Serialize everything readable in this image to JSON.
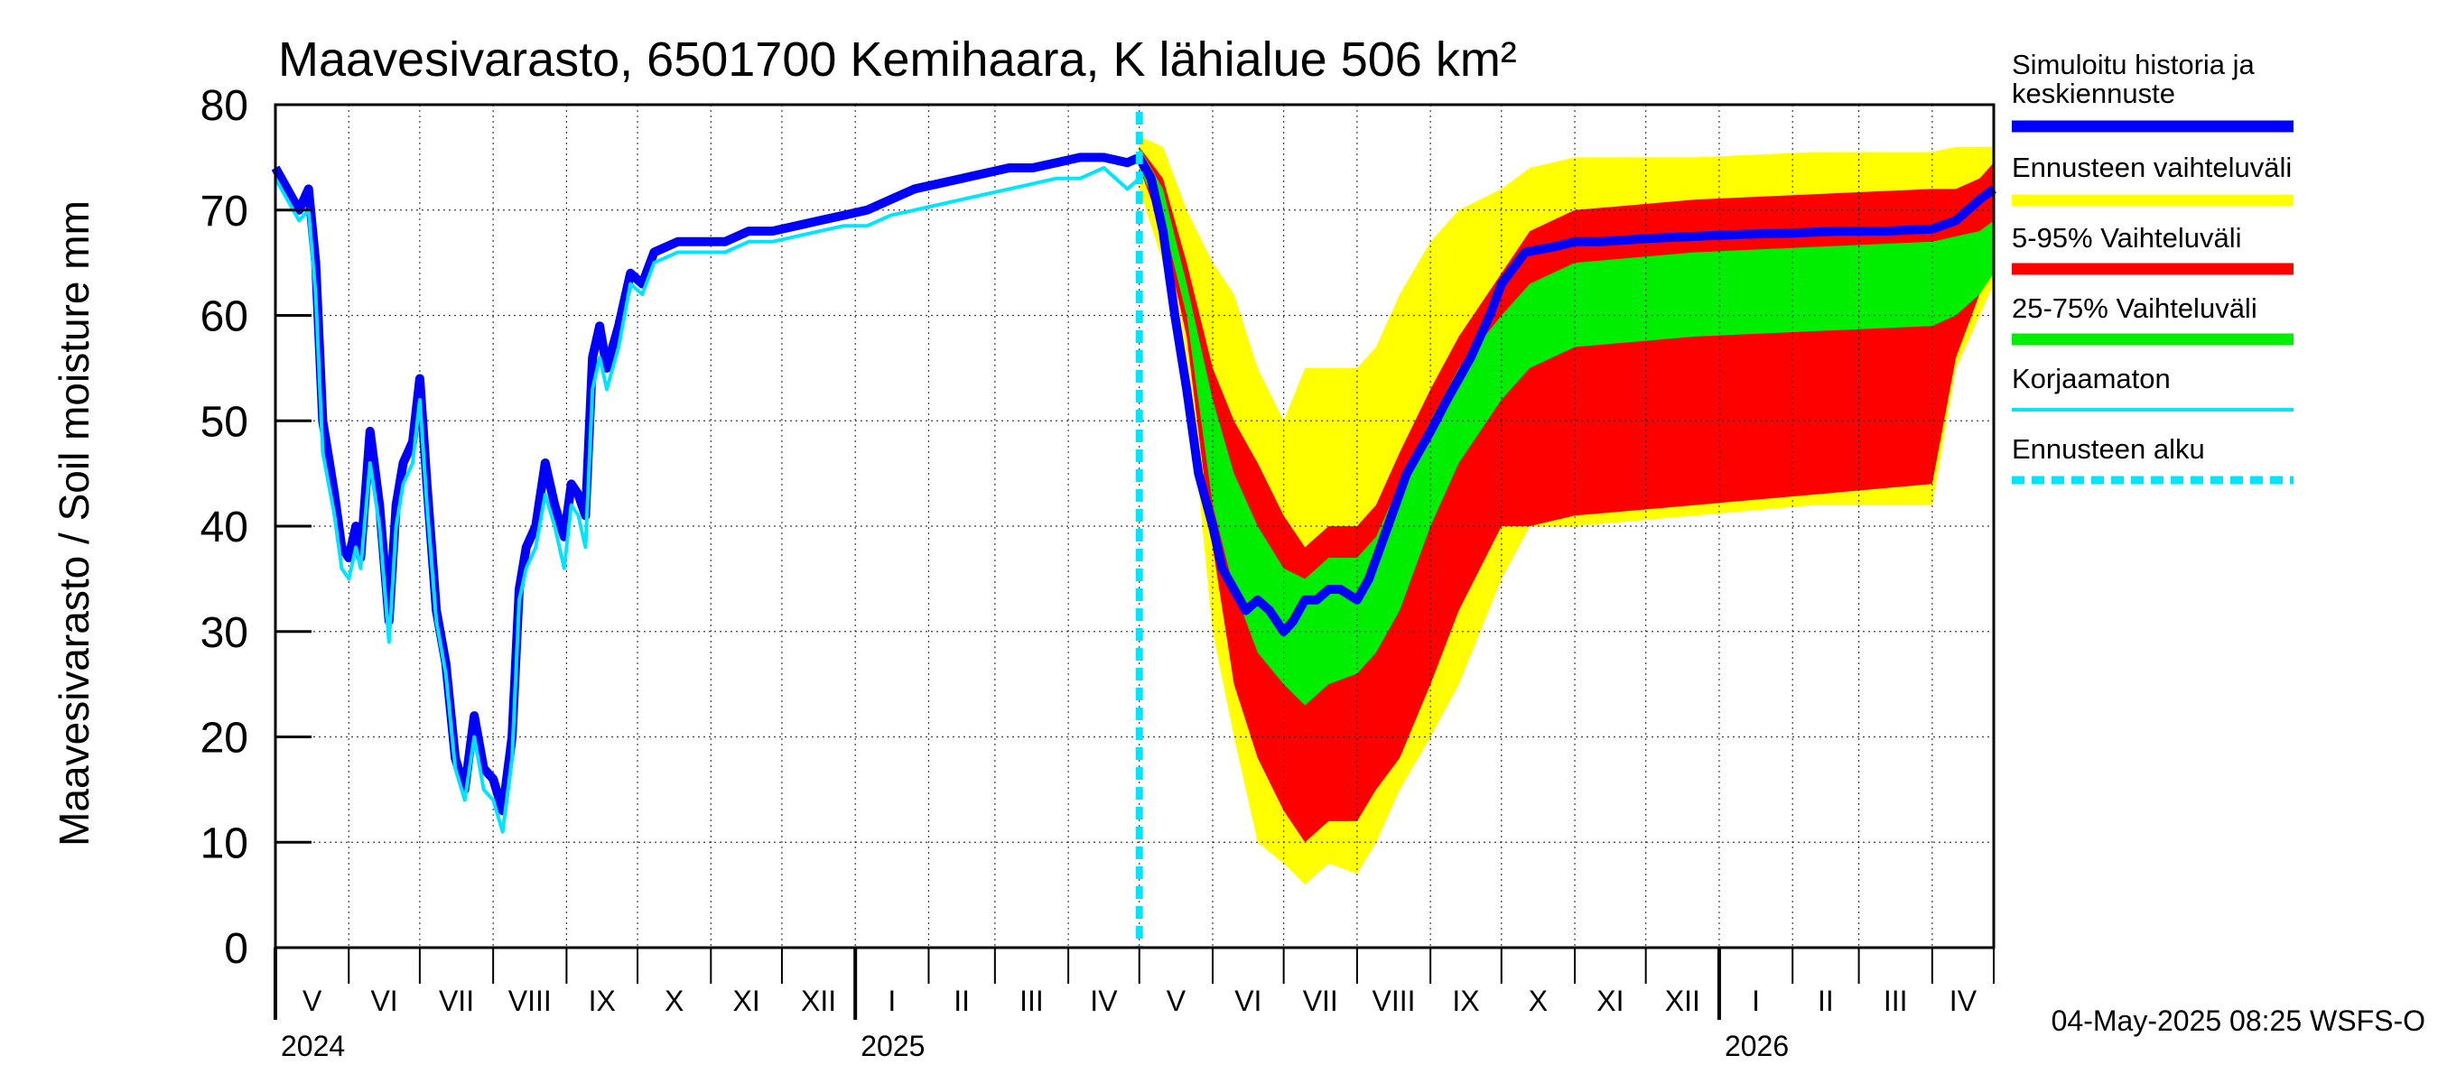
{
  "chart_data": {
    "type": "area",
    "title": "Maavesivarasto, 6501700 Kemihaara, K lähialue 506 km²",
    "ylabel": "Maavesivarasto / Soil moisture   mm",
    "xlabel": "",
    "ylim": [
      0,
      80
    ],
    "yticks": [
      0,
      10,
      20,
      30,
      40,
      50,
      60,
      70,
      80
    ],
    "xlim_days": [
      0,
      726
    ],
    "grid": true,
    "forecast_start_day": 365,
    "months": [
      "V",
      "VI",
      "VII",
      "VIII",
      "IX",
      "X",
      "XI",
      "XII",
      "I",
      "II",
      "III",
      "IV",
      "V",
      "VI",
      "VII",
      "VIII",
      "IX",
      "X",
      "XI",
      "XII",
      "I",
      "II",
      "III",
      "IV"
    ],
    "month_start_days": [
      0,
      31,
      61,
      92,
      123,
      153,
      184,
      214,
      245,
      276,
      304,
      335,
      365,
      396,
      426,
      457,
      488,
      518,
      549,
      579,
      610,
      641,
      669,
      700
    ],
    "years": [
      {
        "label": "2024",
        "day": 0
      },
      {
        "label": "2025",
        "day": 245
      },
      {
        "label": "2026",
        "day": 610
      }
    ],
    "series": [
      {
        "name": "Simuloitu historia ja keskiennuste",
        "color": "#0000ff",
        "x": [
          0,
          10,
          14,
          17,
          20,
          25,
          28,
          31,
          34,
          36,
          40,
          44,
          48,
          51,
          54,
          58,
          61,
          64,
          68,
          72,
          76,
          80,
          84,
          88,
          92,
          96,
          100,
          103,
          106,
          110,
          114,
          118,
          122,
          125,
          128,
          131,
          134,
          137,
          140,
          145,
          150,
          155,
          160,
          170,
          180,
          190,
          200,
          210,
          220,
          230,
          240,
          250,
          260,
          270,
          280,
          290,
          300,
          310,
          320,
          330,
          340,
          350,
          360,
          365
        ],
        "y": [
          74,
          70,
          72,
          65,
          50,
          43,
          38,
          37,
          40,
          37,
          49,
          42,
          31,
          42,
          46,
          48,
          54,
          44,
          32,
          27,
          18,
          15,
          22,
          17,
          16,
          13,
          20,
          34,
          38,
          40,
          46,
          42,
          39,
          44,
          43,
          41,
          56,
          59,
          55,
          59,
          64,
          63,
          66,
          67,
          67,
          67,
          68,
          68,
          68.5,
          69,
          69.5,
          70,
          71,
          72,
          72.5,
          73,
          73.5,
          74,
          74,
          74.5,
          75,
          75,
          74.5,
          75
        ]
      },
      {
        "name": "Keskiennuste",
        "color": "#0000ff",
        "x": [
          365,
          370,
          375,
          380,
          385,
          390,
          396,
          400,
          405,
          410,
          415,
          420,
          426,
          430,
          435,
          440,
          445,
          450,
          457,
          462,
          470,
          478,
          488,
          495,
          505,
          513,
          518,
          528,
          540,
          549,
          560,
          580,
          600,
          620,
          640,
          660,
          680,
          700,
          710,
          715,
          720,
          726
        ],
        "y": [
          75,
          73,
          68,
          60,
          53,
          45,
          40,
          36,
          34,
          32,
          33,
          32,
          30,
          31,
          33,
          33,
          34,
          34,
          33,
          35,
          40,
          45,
          49,
          52,
          56,
          60,
          63,
          66,
          66.5,
          67,
          67,
          67.3,
          67.5,
          67.7,
          67.8,
          68,
          68,
          68.2,
          69,
          70,
          71,
          72
        ]
      },
      {
        "name": "Korjaamaton",
        "color": "#00e5ff",
        "x": [
          0,
          10,
          14,
          17,
          20,
          25,
          28,
          31,
          34,
          36,
          40,
          44,
          48,
          51,
          54,
          58,
          61,
          64,
          68,
          72,
          76,
          80,
          84,
          88,
          92,
          96,
          100,
          103,
          106,
          110,
          114,
          118,
          122,
          125,
          128,
          131,
          134,
          137,
          140,
          145,
          150,
          155,
          160,
          170,
          180,
          190,
          200,
          210,
          220,
          230,
          240,
          250,
          260,
          270,
          280,
          290,
          300,
          310,
          320,
          330,
          340,
          350,
          360,
          365
        ],
        "y": [
          73,
          69,
          70,
          62,
          47,
          41,
          36,
          35,
          38,
          36,
          46,
          40,
          29,
          40,
          44,
          46,
          52,
          42,
          31,
          26,
          17,
          14,
          20,
          15,
          14,
          11,
          18,
          33,
          36,
          38,
          43,
          40,
          36,
          42,
          41,
          38,
          53,
          56,
          53,
          57,
          63,
          62,
          65,
          66,
          66,
          66,
          67,
          67,
          67.5,
          68,
          68.5,
          68.5,
          69.5,
          70,
          70.5,
          71,
          71.5,
          72,
          72.5,
          73,
          73,
          74,
          72,
          73
        ]
      }
    ],
    "bands": [
      {
        "name": "Ennusteen vaihteluväli",
        "color": "#ffff00",
        "x": [
          365,
          375,
          385,
          396,
          405,
          415,
          426,
          435,
          445,
          457,
          465,
          475,
          488,
          500,
          518,
          530,
          549,
          600,
          650,
          700,
          710,
          720,
          726
        ],
        "upper": [
          77,
          76,
          70,
          65,
          62,
          55,
          50,
          55,
          55,
          55,
          57,
          62,
          67,
          70,
          72,
          74,
          75,
          75,
          75.5,
          75.5,
          76,
          76,
          76
        ],
        "lower": [
          72,
          65,
          55,
          30,
          20,
          10,
          8,
          6,
          8,
          7,
          10,
          15,
          20,
          25,
          35,
          40,
          40,
          41,
          42,
          42,
          55,
          60,
          63
        ]
      },
      {
        "name": "5-95% Vaihteluväli",
        "color": "#ff0000",
        "x": [
          365,
          375,
          385,
          396,
          405,
          415,
          426,
          435,
          445,
          457,
          465,
          475,
          488,
          500,
          518,
          530,
          549,
          600,
          650,
          700,
          710,
          720,
          726
        ],
        "upper": [
          76,
          73,
          65,
          55,
          50,
          46,
          41,
          38,
          40,
          40,
          42,
          47,
          53,
          58,
          64,
          68,
          70,
          71,
          71.5,
          72,
          72,
          73,
          74.5
        ],
        "lower": [
          74,
          68,
          58,
          38,
          25,
          18,
          13,
          10,
          12,
          12,
          15,
          18,
          25,
          32,
          40,
          40,
          41,
          42,
          43,
          44,
          56,
          62,
          65
        ]
      },
      {
        "name": "25-75% Vaihteluväli",
        "color": "#00ee00",
        "x": [
          365,
          375,
          385,
          396,
          405,
          415,
          426,
          435,
          445,
          457,
          465,
          475,
          488,
          500,
          518,
          530,
          549,
          600,
          650,
          700,
          710,
          720,
          726
        ],
        "upper": [
          76,
          72,
          63,
          52,
          45,
          40,
          36,
          35,
          37,
          37,
          39,
          44,
          50,
          55,
          60,
          63,
          65,
          66,
          66.5,
          67,
          67.5,
          68,
          69
        ],
        "lower": [
          74,
          69,
          60,
          42,
          34,
          28,
          25,
          23,
          25,
          26,
          28,
          32,
          40,
          46,
          52,
          55,
          57,
          58,
          58.5,
          59,
          60,
          62,
          64
        ]
      }
    ],
    "legend": [
      {
        "label": "Simuloitu historia ja keskiennuste",
        "color": "#0000ff",
        "style": "solid"
      },
      {
        "label": "Ennusteen vaihteluväli",
        "color": "#ffff00",
        "style": "solid"
      },
      {
        "label": "5-95% Vaihteluväli",
        "color": "#ff0000",
        "style": "solid"
      },
      {
        "label": "25-75% Vaihteluväli",
        "color": "#00ee00",
        "style": "solid"
      },
      {
        "label": "Korjaamaton",
        "color": "#00e5ff",
        "style": "thin"
      },
      {
        "label": "Ennusteen alku",
        "color": "#00e5ff",
        "style": "dashed"
      }
    ],
    "legend_position": "right",
    "footer": "04-May-2025 08:25 WSFS-O"
  }
}
